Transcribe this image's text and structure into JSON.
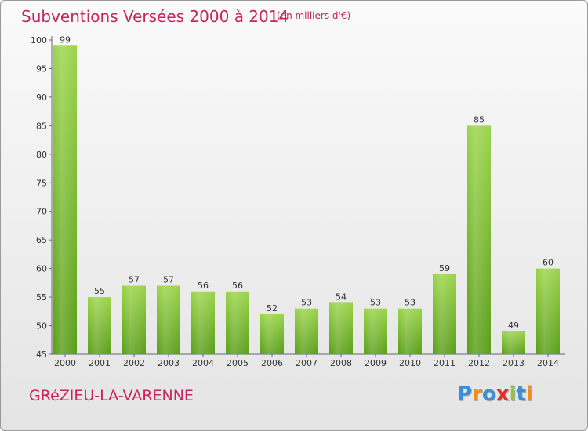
{
  "header": {
    "title": "Subventions Versées 2000 à 2014",
    "unit_note": "(en milliers d'€)"
  },
  "footer": {
    "commune": "GRéZIEU-LA-VARENNE",
    "logo_text": "Proxiti",
    "logo_letters": [
      {
        "char": "P",
        "color": "#3a8fd6"
      },
      {
        "char": "r",
        "color": "#f28c1e"
      },
      {
        "char": "o",
        "color": "#3a8fd6"
      },
      {
        "char": "x",
        "color": "#e3322b"
      },
      {
        "char": "i",
        "color": "#8cc63f"
      },
      {
        "char": "t",
        "color": "#3a8fd6"
      },
      {
        "char": "i",
        "color": "#f28c1e"
      }
    ]
  },
  "colors": {
    "title": "#c8245e",
    "bar_light": "#9bd44a",
    "bar_dark": "#5a9e1a"
  },
  "chart_data": {
    "type": "bar",
    "title": "Subventions Versées 2000 à 2014",
    "subtitle": "(en milliers d'€)",
    "xlabel": "",
    "ylabel": "",
    "categories": [
      "2000",
      "2001",
      "2002",
      "2003",
      "2004",
      "2005",
      "2006",
      "2007",
      "2008",
      "2009",
      "2010",
      "2011",
      "2012",
      "2013",
      "2014"
    ],
    "values": [
      99,
      55,
      57,
      57,
      56,
      56,
      52,
      53,
      54,
      53,
      53,
      59,
      85,
      49,
      60
    ],
    "ylim": [
      45,
      100
    ],
    "yticks": [
      45,
      50,
      55,
      60,
      65,
      70,
      75,
      80,
      85,
      90,
      95,
      100
    ],
    "grid": false,
    "legend": "none"
  }
}
